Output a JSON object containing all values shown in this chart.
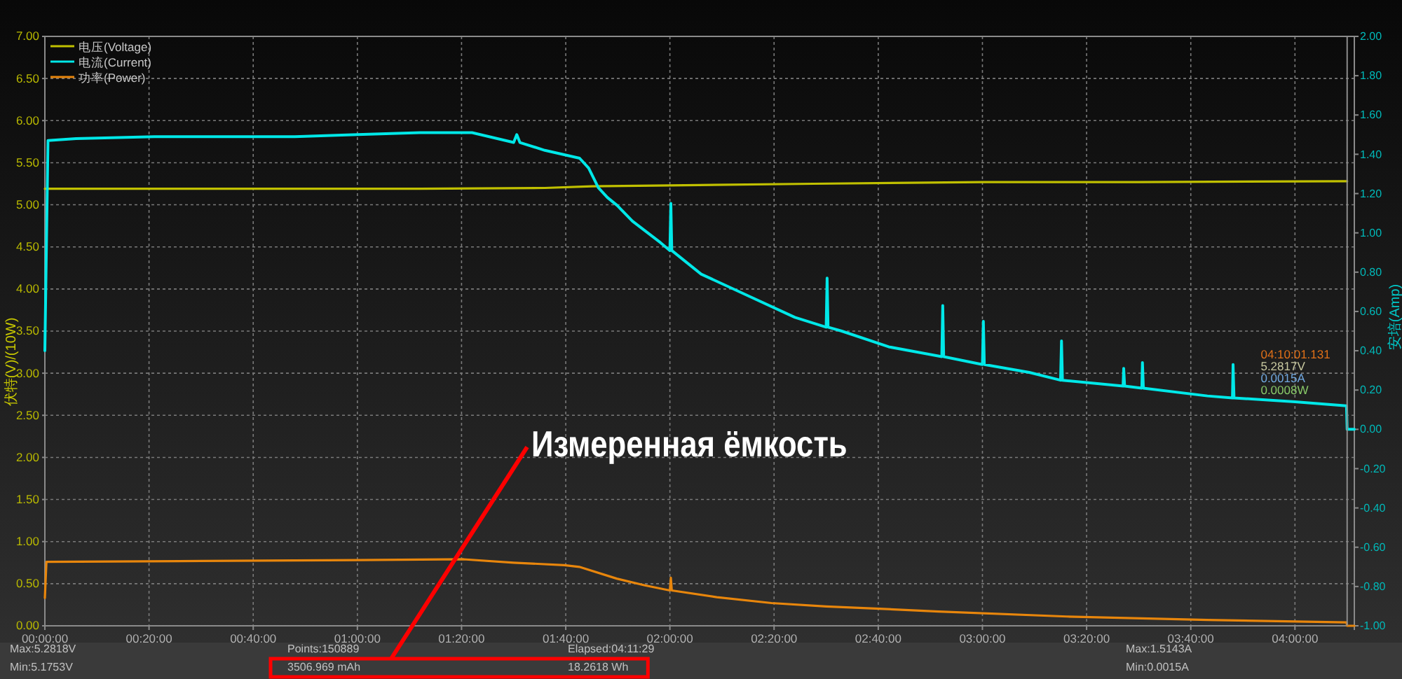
{
  "chart_data": {
    "type": "line",
    "ylabel": "伏特(V)/(10W)",
    "y2label": "安培(Amp)",
    "xlim": [
      0,
      4.19
    ],
    "xticks": [
      {
        "value": 0,
        "label": "00:00:00"
      },
      {
        "value": 0.3333,
        "label": "00:20:00"
      },
      {
        "value": 0.6667,
        "label": "00:40:00"
      },
      {
        "value": 1,
        "label": "01:00:00"
      },
      {
        "value": 1.3333,
        "label": "01:20:00"
      },
      {
        "value": 1.6667,
        "label": "01:40:00"
      },
      {
        "value": 2,
        "label": "02:00:00"
      },
      {
        "value": 2.3333,
        "label": "02:20:00"
      },
      {
        "value": 2.6667,
        "label": "02:40:00"
      },
      {
        "value": 3,
        "label": "03:00:00"
      },
      {
        "value": 3.3333,
        "label": "03:20:00"
      },
      {
        "value": 3.6667,
        "label": "03:40:00"
      },
      {
        "value": 4,
        "label": "04:00:00"
      }
    ],
    "ylim": [
      0,
      7
    ],
    "yticks": [
      {
        "value": 0,
        "label": "0.00"
      },
      {
        "value": 0.5,
        "label": "0.50"
      },
      {
        "value": 1,
        "label": "1.00"
      },
      {
        "value": 1.5,
        "label": "1.50"
      },
      {
        "value": 2,
        "label": "2.00"
      },
      {
        "value": 2.5,
        "label": "2.50"
      },
      {
        "value": 3,
        "label": "3.00"
      },
      {
        "value": 3.5,
        "label": "3.50"
      },
      {
        "value": 4,
        "label": "4.00"
      },
      {
        "value": 4.5,
        "label": "4.50"
      },
      {
        "value": 5,
        "label": "5.00"
      },
      {
        "value": 5.5,
        "label": "5.50"
      },
      {
        "value": 6,
        "label": "6.00"
      },
      {
        "value": 6.5,
        "label": "6.50"
      },
      {
        "value": 7,
        "label": "7.00"
      }
    ],
    "y2lim": [
      -1,
      2
    ],
    "y2ticks": [
      {
        "value": -1,
        "label": "-1.00"
      },
      {
        "value": -0.8,
        "label": "-0.80"
      },
      {
        "value": -0.6,
        "label": "-0.60"
      },
      {
        "value": -0.4,
        "label": "-0.40"
      },
      {
        "value": -0.2,
        "label": "-0.20"
      },
      {
        "value": 0,
        "label": "0.00"
      },
      {
        "value": 0.2,
        "label": "0.20"
      },
      {
        "value": 0.4,
        "label": "0.40"
      },
      {
        "value": 0.6,
        "label": "0.60"
      },
      {
        "value": 0.8,
        "label": "0.80"
      },
      {
        "value": 1,
        "label": "1.00"
      },
      {
        "value": 1.2,
        "label": "1.20"
      },
      {
        "value": 1.4,
        "label": "1.40"
      },
      {
        "value": 1.6,
        "label": "1.60"
      },
      {
        "value": 1.8,
        "label": "1.80"
      },
      {
        "value": 2,
        "label": "2.00"
      }
    ],
    "grid": true,
    "legend": "top left",
    "series": [
      {
        "name": "电压(Voltage)",
        "color": "#c0c000",
        "x": [
          0,
          1.2,
          1.6,
          1.75,
          2.0,
          2.46,
          3.0,
          3.5,
          4.167
        ],
        "values": [
          5.19,
          5.19,
          5.2,
          5.22,
          5.23,
          5.25,
          5.27,
          5.27,
          5.28
        ]
      },
      {
        "name": "电流(Current)",
        "color": "#00e8e8",
        "axis": "y2",
        "x": [
          0,
          0.01,
          0.1,
          0.35,
          0.8,
          1.0,
          1.2,
          1.367,
          1.5,
          1.51,
          1.52,
          1.6,
          1.711,
          1.74,
          1.771,
          1.8,
          1.831,
          1.88,
          1.921,
          1.97,
          2.0,
          2.003,
          2.006,
          2.1,
          2.25,
          2.4,
          2.5,
          2.503,
          2.506,
          2.55,
          2.7,
          2.87,
          2.873,
          2.876,
          3.0,
          3.003,
          3.006,
          3.15,
          3.25,
          3.253,
          3.256,
          3.45,
          3.452,
          3.455,
          3.51,
          3.512,
          3.515,
          3.72,
          3.8,
          3.802,
          3.805,
          4.0,
          4.165,
          4.167,
          4.19
        ],
        "values": [
          0.4,
          1.47,
          1.48,
          1.49,
          1.49,
          1.5,
          1.51,
          1.51,
          1.46,
          1.5,
          1.46,
          1.42,
          1.38,
          1.33,
          1.23,
          1.18,
          1.14,
          1.06,
          1.01,
          0.95,
          0.91,
          1.15,
          0.91,
          0.79,
          0.68,
          0.57,
          0.52,
          0.77,
          0.52,
          0.5,
          0.42,
          0.37,
          0.63,
          0.37,
          0.33,
          0.55,
          0.33,
          0.29,
          0.25,
          0.45,
          0.25,
          0.22,
          0.31,
          0.22,
          0.21,
          0.34,
          0.21,
          0.17,
          0.16,
          0.33,
          0.16,
          0.14,
          0.12,
          0,
          0
        ]
      },
      {
        "name": "功率(Power)",
        "color": "#e8860c",
        "x": [
          0,
          0.005,
          0.5,
          1.0,
          1.34,
          1.5,
          1.662,
          1.71,
          1.83,
          1.92,
          2.0,
          2.003,
          2.006,
          2.15,
          2.325,
          2.5,
          2.684,
          2.86,
          3.27,
          3.72,
          4.165,
          4.167,
          4.19
        ],
        "values": [
          0.33,
          0.76,
          0.77,
          0.78,
          0.79,
          0.75,
          0.72,
          0.7,
          0.56,
          0.48,
          0.42,
          0.57,
          0.42,
          0.34,
          0.27,
          0.23,
          0.2,
          0.17,
          0.11,
          0.07,
          0.04,
          0,
          0
        ]
      }
    ],
    "ref_lines": [
      {
        "axis": "x",
        "value": 4.167,
        "label": "04:10:01.131",
        "color": "#8c8c8c"
      }
    ],
    "annotations": [
      "Max:5.2818V",
      "Min:5.1753V",
      "Points:150889",
      "3506.969 mAh",
      "Elapsed:04:11:29",
      "18.2618 Wh",
      "Max:1.5143A",
      "Min:0.0015A",
      "5.2817V",
      "0.0015A",
      "0.0008W",
      "Измеренная ёмкость"
    ]
  }
}
